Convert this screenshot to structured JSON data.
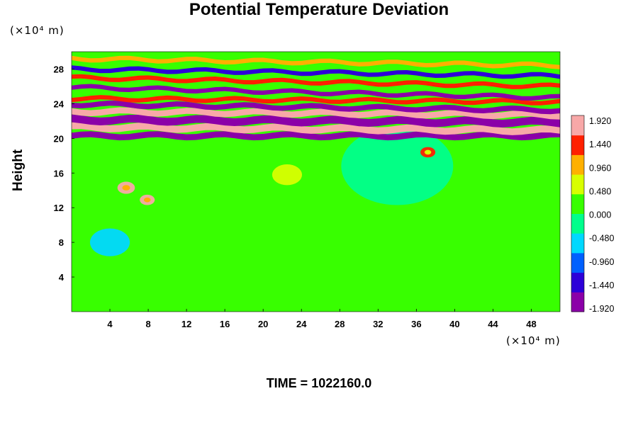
{
  "chart_data": {
    "type": "heatmap",
    "title": "Potential Temperature Deviation",
    "ylabel": "Height",
    "xlabel": "",
    "y_unit": "(×10⁴ m)",
    "x_unit": "(×10⁴ m)",
    "x_ticks": [
      4,
      8,
      12,
      16,
      20,
      24,
      28,
      32,
      36,
      40,
      44,
      48
    ],
    "y_ticks": [
      4,
      8,
      12,
      16,
      20,
      24,
      28
    ],
    "xlim": [
      0,
      51
    ],
    "ylim": [
      0,
      30
    ],
    "colorbar": {
      "range": [
        -1.92,
        1.92
      ],
      "tick_labels": [
        "1.920",
        "1.440",
        "0.960",
        "0.480",
        "0.000",
        "-0.480",
        "-0.960",
        "-1.440",
        "-1.920"
      ],
      "colors": [
        "#8b00a8",
        "#2d00d8",
        "#0060ff",
        "#00d8ff",
        "#00ff8c",
        "#38ff00",
        "#d8ff00",
        "#ffb000",
        "#ff2000",
        "#f8a8a8"
      ]
    },
    "footer": "TIME = 1022160.0",
    "features": [
      {
        "type": "background",
        "value": 0.0
      },
      {
        "type": "band",
        "y_center": 20.3,
        "thickness": 0.7,
        "value": -1.92,
        "tilt": 0.0
      },
      {
        "type": "band",
        "y_center": 21.1,
        "thickness": 0.8,
        "value": 1.92,
        "tilt": 0.4
      },
      {
        "type": "band",
        "y_center": 22.0,
        "thickness": 0.9,
        "value": -1.92,
        "tilt": 0.3
      },
      {
        "type": "band",
        "y_center": 22.9,
        "thickness": 0.7,
        "value": 1.92,
        "tilt": 0.4
      },
      {
        "type": "band",
        "y_center": 23.6,
        "thickness": 0.6,
        "value": -1.92,
        "tilt": 0.7
      },
      {
        "type": "band",
        "y_center": 24.4,
        "thickness": 0.5,
        "value": 1.4,
        "tilt": 0.4
      },
      {
        "type": "band",
        "y_center": 25.3,
        "thickness": 0.5,
        "value": -1.7,
        "tilt": 1.2
      },
      {
        "type": "band",
        "y_center": 26.5,
        "thickness": 0.5,
        "value": 1.3,
        "tilt": 1.0
      },
      {
        "type": "band",
        "y_center": 27.6,
        "thickness": 0.5,
        "value": -1.4,
        "tilt": 0.8
      },
      {
        "type": "band",
        "y_center": 28.8,
        "thickness": 0.5,
        "value": 1.1,
        "tilt": 0.8
      },
      {
        "type": "blob",
        "x": 5.7,
        "y": 14.3,
        "radius": 0.7,
        "value": 1.7
      },
      {
        "type": "blob",
        "x": 7.9,
        "y": 12.9,
        "radius": 0.6,
        "value": 1.6
      },
      {
        "type": "blob",
        "x": 37.2,
        "y": 18.4,
        "radius": 0.6,
        "value": 1.2
      },
      {
        "type": "blob",
        "x": 22.5,
        "y": 15.8,
        "radius": 1.2,
        "value": 0.5
      },
      {
        "type": "blob",
        "x": 34,
        "y": 16.8,
        "radius": 4.5,
        "value": -0.35
      },
      {
        "type": "blob",
        "x": 4,
        "y": 8.0,
        "radius": 1.6,
        "value": -0.55
      }
    ]
  }
}
